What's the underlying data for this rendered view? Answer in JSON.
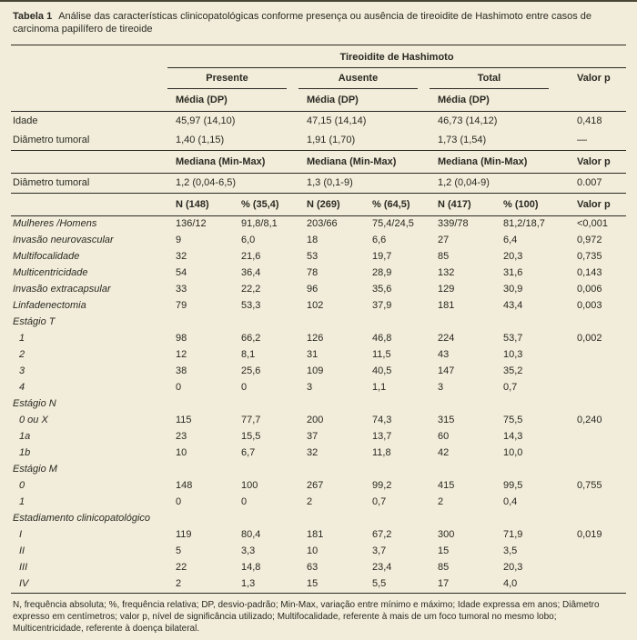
{
  "caption": {
    "label": "Tabela 1",
    "text": "Análise das características clinicopatológicas conforme presença ou ausência de tireoidite de Hashimoto entre casos de carcinoma papilífero de tireoide"
  },
  "table": {
    "header": {
      "spanner": "Tireoidite de Hashimoto",
      "groups": [
        "Presente",
        "Ausente",
        "Total"
      ],
      "valor_p": "Valor p",
      "media": "Média (DP)",
      "mediana": "Mediana (Min-Max)",
      "counts": [
        "N (148)",
        "% (35,4)",
        "N (269)",
        "% (64,5)",
        "N (417)",
        "% (100)"
      ]
    },
    "stat_rows": [
      {
        "label": "Idade",
        "values": [
          "45,97 (14,10)",
          "47,15 (14,14)",
          "46,73 (14,12)"
        ],
        "p": "0,418"
      },
      {
        "label": "Diâmetro tumoral",
        "values": [
          "1,40 (1,15)",
          "1,91 (1,70)",
          "1,73 (1,54)"
        ],
        "p": "—"
      }
    ],
    "median_rows": [
      {
        "label": "Diâmetro tumoral",
        "values": [
          "1,2 (0,04-6,5)",
          "1,3 (0,1-9)",
          "1,2 (0,04-9)"
        ],
        "p": "0.007"
      }
    ],
    "count_rows": [
      {
        "label": "Mulheres /Homens",
        "cells": [
          "136/12",
          "91,8/8,1",
          "203/66",
          "75,4/24,5",
          "339/78",
          "81,2/18,7"
        ],
        "p": "<0,001"
      },
      {
        "label": "Invasão neurovascular",
        "cells": [
          "9",
          "6,0",
          "18",
          "6,6",
          "27",
          "6,4"
        ],
        "p": "0,972"
      },
      {
        "label": "Multifocalidade",
        "cells": [
          "32",
          "21,6",
          "53",
          "19,7",
          "85",
          "20,3"
        ],
        "p": "0,735"
      },
      {
        "label": "Multicentricidade",
        "cells": [
          "54",
          "36,4",
          "78",
          "28,9",
          "132",
          "31,6"
        ],
        "p": "0,143"
      },
      {
        "label": "Invasão extracapsular",
        "cells": [
          "33",
          "22,2",
          "96",
          "35,6",
          "129",
          "30,9"
        ],
        "p": "0,006"
      },
      {
        "label": "Linfadenectomia",
        "cells": [
          "79",
          "53,3",
          "102",
          "37,9",
          "181",
          "43,4"
        ],
        "p": "0,003"
      },
      {
        "label": "Estágio T",
        "section": true
      },
      {
        "label": "1",
        "indent": true,
        "cells": [
          "98",
          "66,2",
          "126",
          "46,8",
          "224",
          "53,7"
        ],
        "p": "0,002"
      },
      {
        "label": "2",
        "indent": true,
        "cells": [
          "12",
          "8,1",
          "31",
          "11,5",
          "43",
          "10,3"
        ],
        "p": ""
      },
      {
        "label": "3",
        "indent": true,
        "cells": [
          "38",
          "25,6",
          "109",
          "40,5",
          "147",
          "35,2"
        ],
        "p": ""
      },
      {
        "label": "4",
        "indent": true,
        "cells": [
          "0",
          "0",
          "3",
          "1,1",
          "3",
          "0,7"
        ],
        "p": ""
      },
      {
        "label": "Estágio N",
        "section": true
      },
      {
        "label": "0 ou X",
        "indent": true,
        "cells": [
          "115",
          "77,7",
          "200",
          "74,3",
          "315",
          "75,5"
        ],
        "p": "0,240"
      },
      {
        "label": "1a",
        "indent": true,
        "cells": [
          "23",
          "15,5",
          "37",
          "13,7",
          "60",
          "14,3"
        ],
        "p": ""
      },
      {
        "label": "1b",
        "indent": true,
        "cells": [
          "10",
          "6,7",
          "32",
          "11,8",
          "42",
          "10,0"
        ],
        "p": ""
      },
      {
        "label": "Estágio M",
        "section": true
      },
      {
        "label": "0",
        "indent": true,
        "cells": [
          "148",
          "100",
          "267",
          "99,2",
          "415",
          "99,5"
        ],
        "p": "0,755"
      },
      {
        "label": "1",
        "indent": true,
        "cells": [
          "0",
          "0",
          "2",
          "0,7",
          "2",
          "0,4"
        ],
        "p": ""
      },
      {
        "label": "Estadiamento clinicopatológico",
        "section": true
      },
      {
        "label": "I",
        "indent": true,
        "cells": [
          "119",
          "80,4",
          "181",
          "67,2",
          "300",
          "71,9"
        ],
        "p": "0,019"
      },
      {
        "label": "II",
        "indent": true,
        "cells": [
          "5",
          "3,3",
          "10",
          "3,7",
          "15",
          "3,5"
        ],
        "p": ""
      },
      {
        "label": "III",
        "indent": true,
        "cells": [
          "22",
          "14,8",
          "63",
          "23,4",
          "85",
          "20,3"
        ],
        "p": ""
      },
      {
        "label": "IV",
        "indent": true,
        "cells": [
          "2",
          "1,3",
          "15",
          "5,5",
          "17",
          "4,0"
        ],
        "p": ""
      }
    ]
  },
  "footnote": {
    "text": "N, frequência absoluta; %, frequência relativa; DP, desvio-padrão; Min-Max, variação entre mínimo e máximo; Idade expressa em anos; Diâmetro expresso em centímetros; valor p, nível de significância utilizado; Multifocalidade, referente à mais de um foco tumoral no mesmo lobo; Multicentricidade, referente à doença bilateral."
  }
}
